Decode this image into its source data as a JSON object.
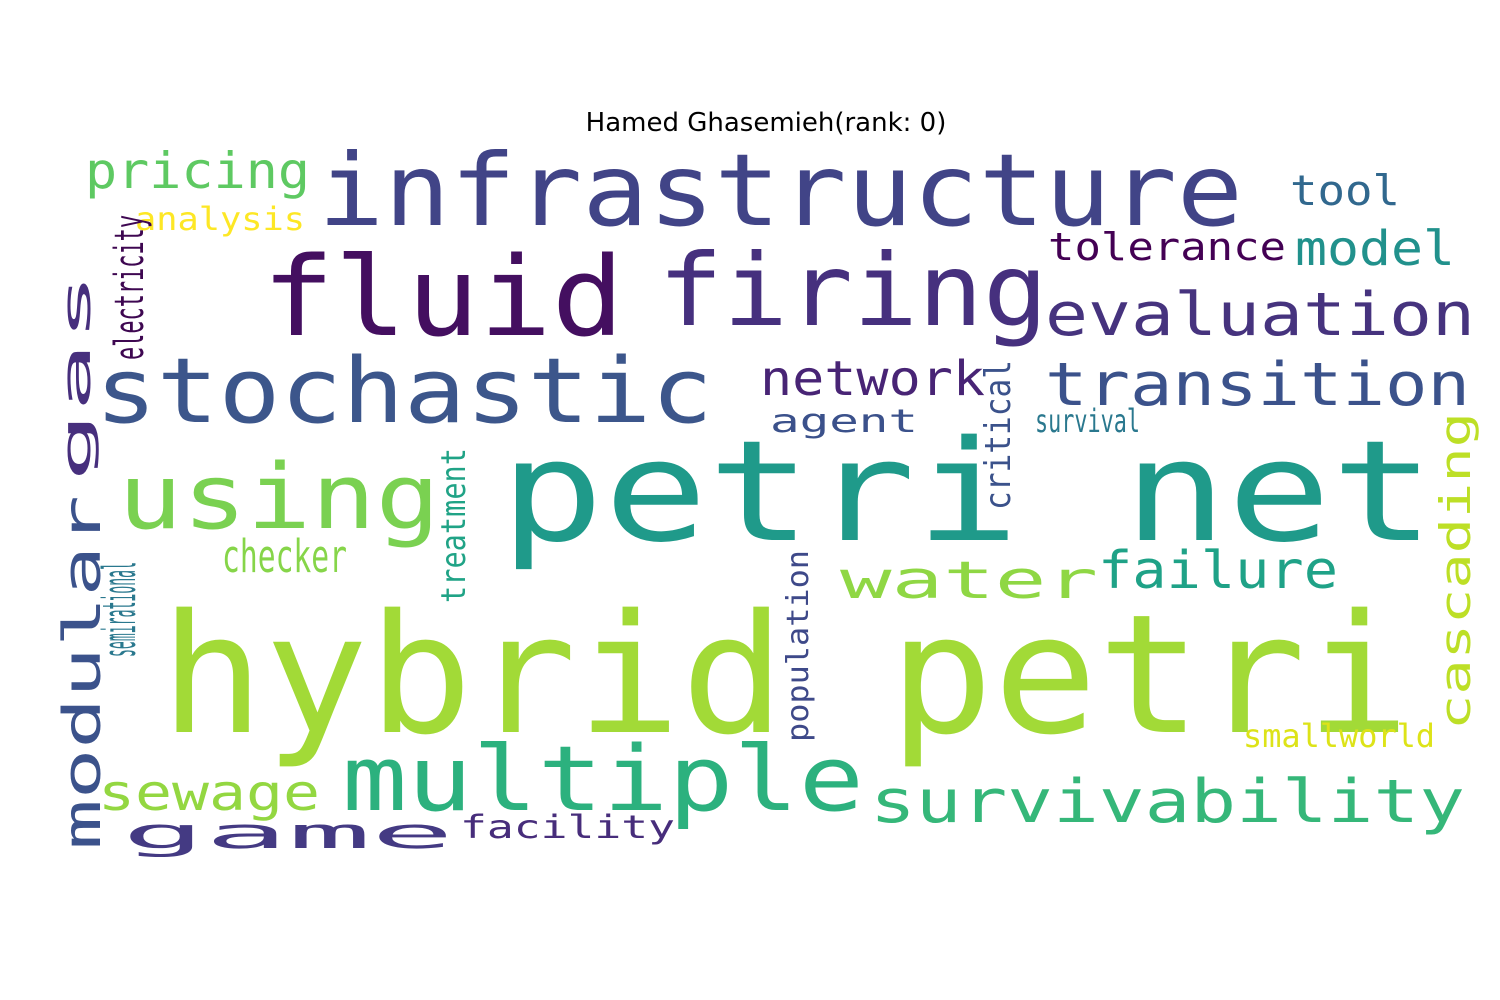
{
  "title": "Hamed Ghasemieh(rank: 0)",
  "words": [
    {
      "text": "hybrid petri",
      "color": "#a2da37"
    },
    {
      "text": "petri net",
      "color": "#1f9a8a"
    },
    {
      "text": "infrastructure",
      "color": "#414487"
    },
    {
      "text": "fluid",
      "color": "#440f60"
    },
    {
      "text": "firing",
      "color": "#46307e"
    },
    {
      "text": "stochastic",
      "color": "#3c568b"
    },
    {
      "text": "using",
      "color": "#7ad151"
    },
    {
      "text": "multiple",
      "color": "#2cb17e"
    },
    {
      "text": "survivability",
      "color": "#35b779"
    },
    {
      "text": "evaluation",
      "color": "#46337e"
    },
    {
      "text": "transition",
      "color": "#3b528b"
    },
    {
      "text": "pricing",
      "color": "#5ec962"
    },
    {
      "text": "tool",
      "color": "#31688e"
    },
    {
      "text": "analysis",
      "color": "#fde725"
    },
    {
      "text": "tolerance",
      "color": "#440154"
    },
    {
      "text": "model",
      "color": "#21918c"
    },
    {
      "text": "network",
      "color": "#482475"
    },
    {
      "text": "agent",
      "color": "#3b518b"
    },
    {
      "text": "survival",
      "color": "#2a788e"
    },
    {
      "text": "checker",
      "color": "#86d549"
    },
    {
      "text": "water",
      "color": "#8fd744"
    },
    {
      "text": "failure",
      "color": "#1fa287"
    },
    {
      "text": "smallworld",
      "color": "#dde318"
    },
    {
      "text": "sewage",
      "color": "#93d741"
    },
    {
      "text": "game",
      "color": "#443a83"
    },
    {
      "text": "facility",
      "color": "#472d7b"
    },
    {
      "text": "critical",
      "color": "#3b528b"
    },
    {
      "text": "electricity",
      "color": "#3e0751"
    },
    {
      "text": "gas",
      "color": "#472f7d"
    },
    {
      "text": "cascading",
      "color": "#bddf26"
    },
    {
      "text": "treatment",
      "color": "#20a386"
    },
    {
      "text": "modular",
      "color": "#3b528b"
    },
    {
      "text": "semirational",
      "color": "#2a788e"
    },
    {
      "text": "population",
      "color": "#3e4989"
    }
  ]
}
